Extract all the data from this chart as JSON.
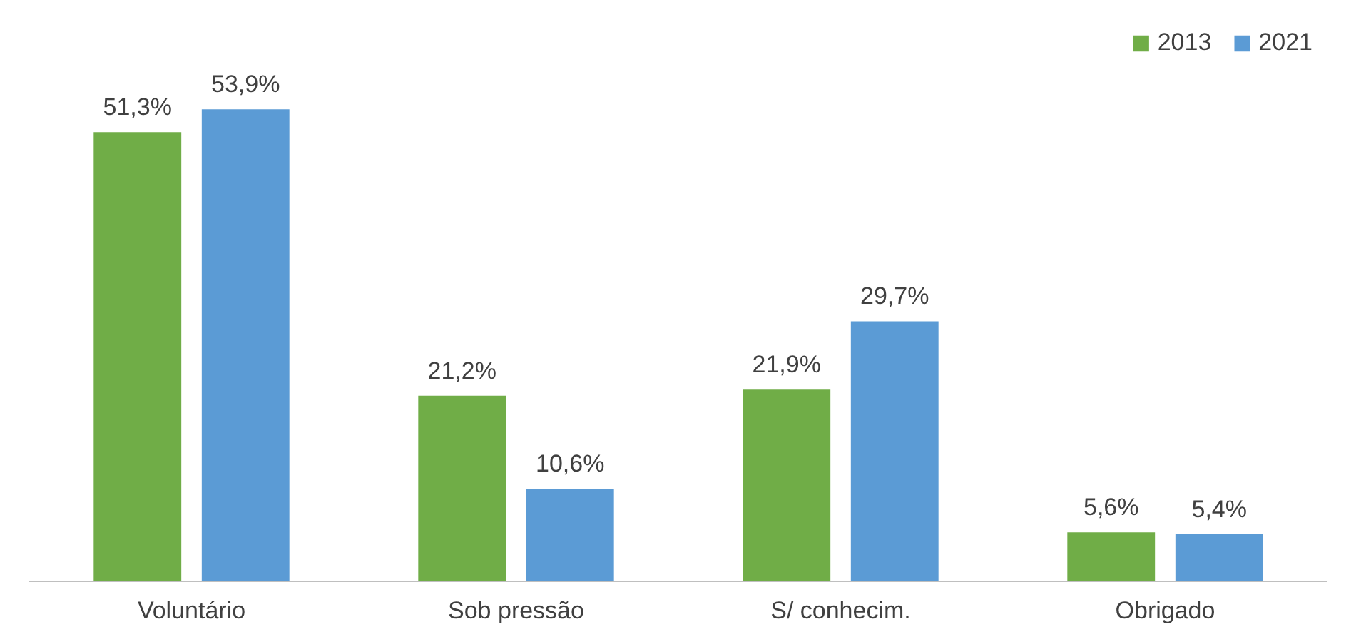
{
  "chart_data": {
    "type": "bar",
    "categories": [
      "Voluntário",
      "Sob pressão",
      "S/ conhecim.",
      "Obrigado"
    ],
    "series": [
      {
        "name": "2013",
        "color": "#70ad47",
        "values": [
          51.3,
          21.2,
          21.9,
          5.6
        ],
        "value_labels": [
          "51,3%",
          "21,2%",
          "21,9%",
          "5,6%"
        ]
      },
      {
        "name": "2021",
        "color": "#5b9bd5",
        "values": [
          53.9,
          10.6,
          29.7,
          5.4
        ],
        "value_labels": [
          "53,9%",
          "10,6%",
          "29,7%",
          "5,4%"
        ]
      }
    ],
    "legend": "top right",
    "grid": false
  }
}
